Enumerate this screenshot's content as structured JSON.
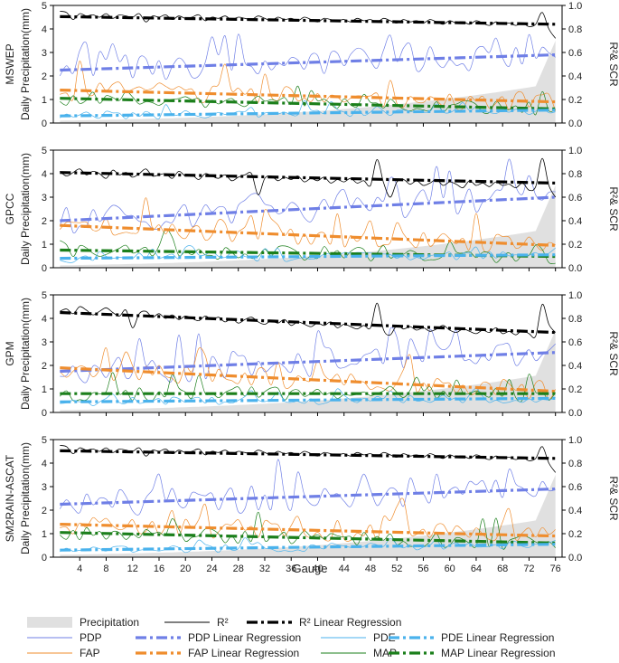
{
  "chart_data": {
    "type": "line",
    "x_label": "Gauge",
    "x_ticks": [
      4,
      8,
      12,
      16,
      20,
      24,
      28,
      32,
      36,
      40,
      44,
      48,
      52,
      56,
      60,
      64,
      68,
      72,
      76
    ],
    "xlim": [
      0,
      77
    ],
    "left_ylabel": "Daily Precipitation(mm)",
    "right_ylabel": "R²& SCR",
    "left_ylim": [
      0,
      5
    ],
    "right_ylim": [
      0,
      1.0
    ],
    "left_ticks": [
      "0",
      "1",
      "2",
      "3",
      "4",
      "5"
    ],
    "right_ticks": [
      "0.0",
      "0.2",
      "0.4",
      "0.6",
      "0.8",
      "1.0"
    ],
    "colors": {
      "precip": "#e0e0e0",
      "r2": "#000000",
      "pdp": "#6f7fe6",
      "fap": "#ef8d2e",
      "pde": "#4ab2ec",
      "map": "#1b7f1b"
    },
    "panels": [
      {
        "name": "MSWEP",
        "r2_reg": [
          0.905,
          0.84
        ],
        "pdp_reg": [
          2.25,
          2.9
        ],
        "fap_reg": [
          1.4,
          0.9
        ],
        "pde_reg": [
          0.3,
          0.55
        ],
        "map_reg": [
          1.05,
          0.6
        ],
        "r2": [
          0.95,
          0.94,
          0.88,
          0.93,
          0.91,
          0.92,
          0.9,
          0.93,
          0.89,
          0.92,
          0.91,
          0.9,
          0.93,
          0.86,
          0.91,
          0.9,
          0.92,
          0.88,
          0.91,
          0.89,
          0.9,
          0.92,
          0.87,
          0.9,
          0.89,
          0.91,
          0.88,
          0.9,
          0.89,
          0.88,
          0.91,
          0.89,
          0.87,
          0.9,
          0.88,
          0.89,
          0.87,
          0.9,
          0.88,
          0.86,
          0.89,
          0.88,
          0.87,
          0.88,
          0.86,
          0.89,
          0.87,
          0.88,
          0.86,
          0.89,
          0.87,
          0.85,
          0.88,
          0.86,
          0.87,
          0.85,
          0.88,
          0.86,
          0.84,
          0.87,
          0.85,
          0.86,
          0.84,
          0.87,
          0.85,
          0.83,
          0.86,
          0.84,
          0.85,
          0.83,
          0.85,
          0.82,
          0.84,
          0.94,
          0.8,
          0.72
        ]
      },
      {
        "name": "GPCC",
        "r2_reg": [
          0.81,
          0.72
        ],
        "pdp_reg": [
          2.0,
          3.0
        ],
        "fap_reg": [
          1.8,
          0.95
        ],
        "pde_reg": [
          0.4,
          0.55
        ],
        "map_reg": [
          0.75,
          0.48
        ],
        "r2": [
          0.82,
          0.78,
          0.81,
          0.84,
          0.79,
          0.82,
          0.8,
          0.76,
          0.83,
          0.79,
          0.81,
          0.77,
          0.8,
          0.84,
          0.78,
          0.79,
          0.8,
          0.76,
          0.82,
          0.78,
          0.79,
          0.75,
          0.8,
          0.78,
          0.76,
          0.79,
          0.74,
          0.77,
          0.79,
          0.8,
          0.62,
          0.76,
          0.78,
          0.74,
          0.77,
          0.75,
          0.78,
          0.73,
          0.76,
          0.74,
          0.77,
          0.72,
          0.75,
          0.73,
          0.76,
          0.72,
          0.74,
          0.7,
          0.92,
          0.72,
          0.6,
          0.73,
          0.75,
          0.71,
          0.74,
          0.7,
          0.72,
          0.75,
          0.7,
          0.73,
          0.71,
          0.68,
          0.74,
          0.7,
          0.72,
          0.69,
          0.73,
          0.7,
          0.71,
          0.68,
          0.72,
          0.66,
          0.69,
          0.93,
          0.7,
          0.6
        ]
      },
      {
        "name": "GPM",
        "r2_reg": [
          0.85,
          0.68
        ],
        "pdp_reg": [
          1.75,
          2.55
        ],
        "fap_reg": [
          1.9,
          0.9
        ],
        "pde_reg": [
          0.45,
          0.6
        ],
        "map_reg": [
          0.8,
          0.8
        ],
        "r2": [
          0.86,
          0.88,
          0.84,
          0.9,
          0.87,
          0.83,
          0.86,
          0.89,
          0.85,
          0.82,
          0.87,
          0.72,
          0.84,
          0.86,
          0.81,
          0.84,
          0.8,
          0.83,
          0.79,
          0.82,
          0.8,
          0.78,
          0.82,
          0.79,
          0.81,
          0.77,
          0.8,
          0.76,
          0.79,
          0.81,
          0.77,
          0.75,
          0.78,
          0.76,
          0.79,
          0.74,
          0.77,
          0.75,
          0.73,
          0.76,
          0.74,
          0.77,
          0.72,
          0.75,
          0.73,
          0.71,
          0.74,
          0.72,
          0.93,
          0.7,
          0.66,
          0.74,
          0.71,
          0.73,
          0.7,
          0.72,
          0.69,
          0.71,
          0.74,
          0.7,
          0.68,
          0.71,
          0.69,
          0.67,
          0.7,
          0.68,
          0.72,
          0.67,
          0.69,
          0.66,
          0.7,
          0.67,
          0.65,
          0.92,
          0.75,
          0.68
        ]
      },
      {
        "name": "SM2RAIN-ASCAT",
        "r2_reg": [
          0.905,
          0.84
        ],
        "pdp_reg": [
          2.25,
          2.9
        ],
        "fap_reg": [
          1.4,
          0.9
        ],
        "pde_reg": [
          0.3,
          0.55
        ],
        "map_reg": [
          1.05,
          0.6
        ],
        "r2": [
          0.95,
          0.94,
          0.88,
          0.93,
          0.91,
          0.92,
          0.9,
          0.93,
          0.89,
          0.92,
          0.91,
          0.9,
          0.93,
          0.86,
          0.91,
          0.9,
          0.92,
          0.88,
          0.91,
          0.89,
          0.9,
          0.92,
          0.87,
          0.9,
          0.89,
          0.91,
          0.88,
          0.9,
          0.89,
          0.88,
          0.91,
          0.89,
          0.87,
          0.9,
          0.88,
          0.89,
          0.87,
          0.9,
          0.88,
          0.86,
          0.89,
          0.88,
          0.87,
          0.88,
          0.86,
          0.89,
          0.87,
          0.88,
          0.86,
          0.89,
          0.87,
          0.85,
          0.88,
          0.86,
          0.87,
          0.85,
          0.88,
          0.86,
          0.84,
          0.87,
          0.85,
          0.86,
          0.84,
          0.87,
          0.85,
          0.83,
          0.86,
          0.84,
          0.85,
          0.83,
          0.85,
          0.82,
          0.84,
          0.94,
          0.8,
          0.72
        ]
      }
    ],
    "legend": [
      {
        "key": "precip",
        "label": "Precipitation",
        "kind": "area"
      },
      {
        "key": "r2",
        "label": "R²",
        "kind": "line"
      },
      {
        "key": "r2",
        "label": "R² Linear Regression",
        "kind": "reg"
      },
      {
        "key": "pdp",
        "label": "PDP",
        "kind": "line"
      },
      {
        "key": "pdp",
        "label": "PDP Linear Regression",
        "kind": "reg"
      },
      {
        "key": "pde",
        "label": "PDE",
        "kind": "line"
      },
      {
        "key": "pde",
        "label": "PDE Linear Regression",
        "kind": "reg"
      },
      {
        "key": "fap",
        "label": "FAP",
        "kind": "line"
      },
      {
        "key": "fap",
        "label": "FAP Linear Regression",
        "kind": "reg"
      },
      {
        "key": "map",
        "label": "MAP",
        "kind": "line"
      },
      {
        "key": "map",
        "label": "MAP Linear Regression",
        "kind": "reg"
      }
    ]
  }
}
